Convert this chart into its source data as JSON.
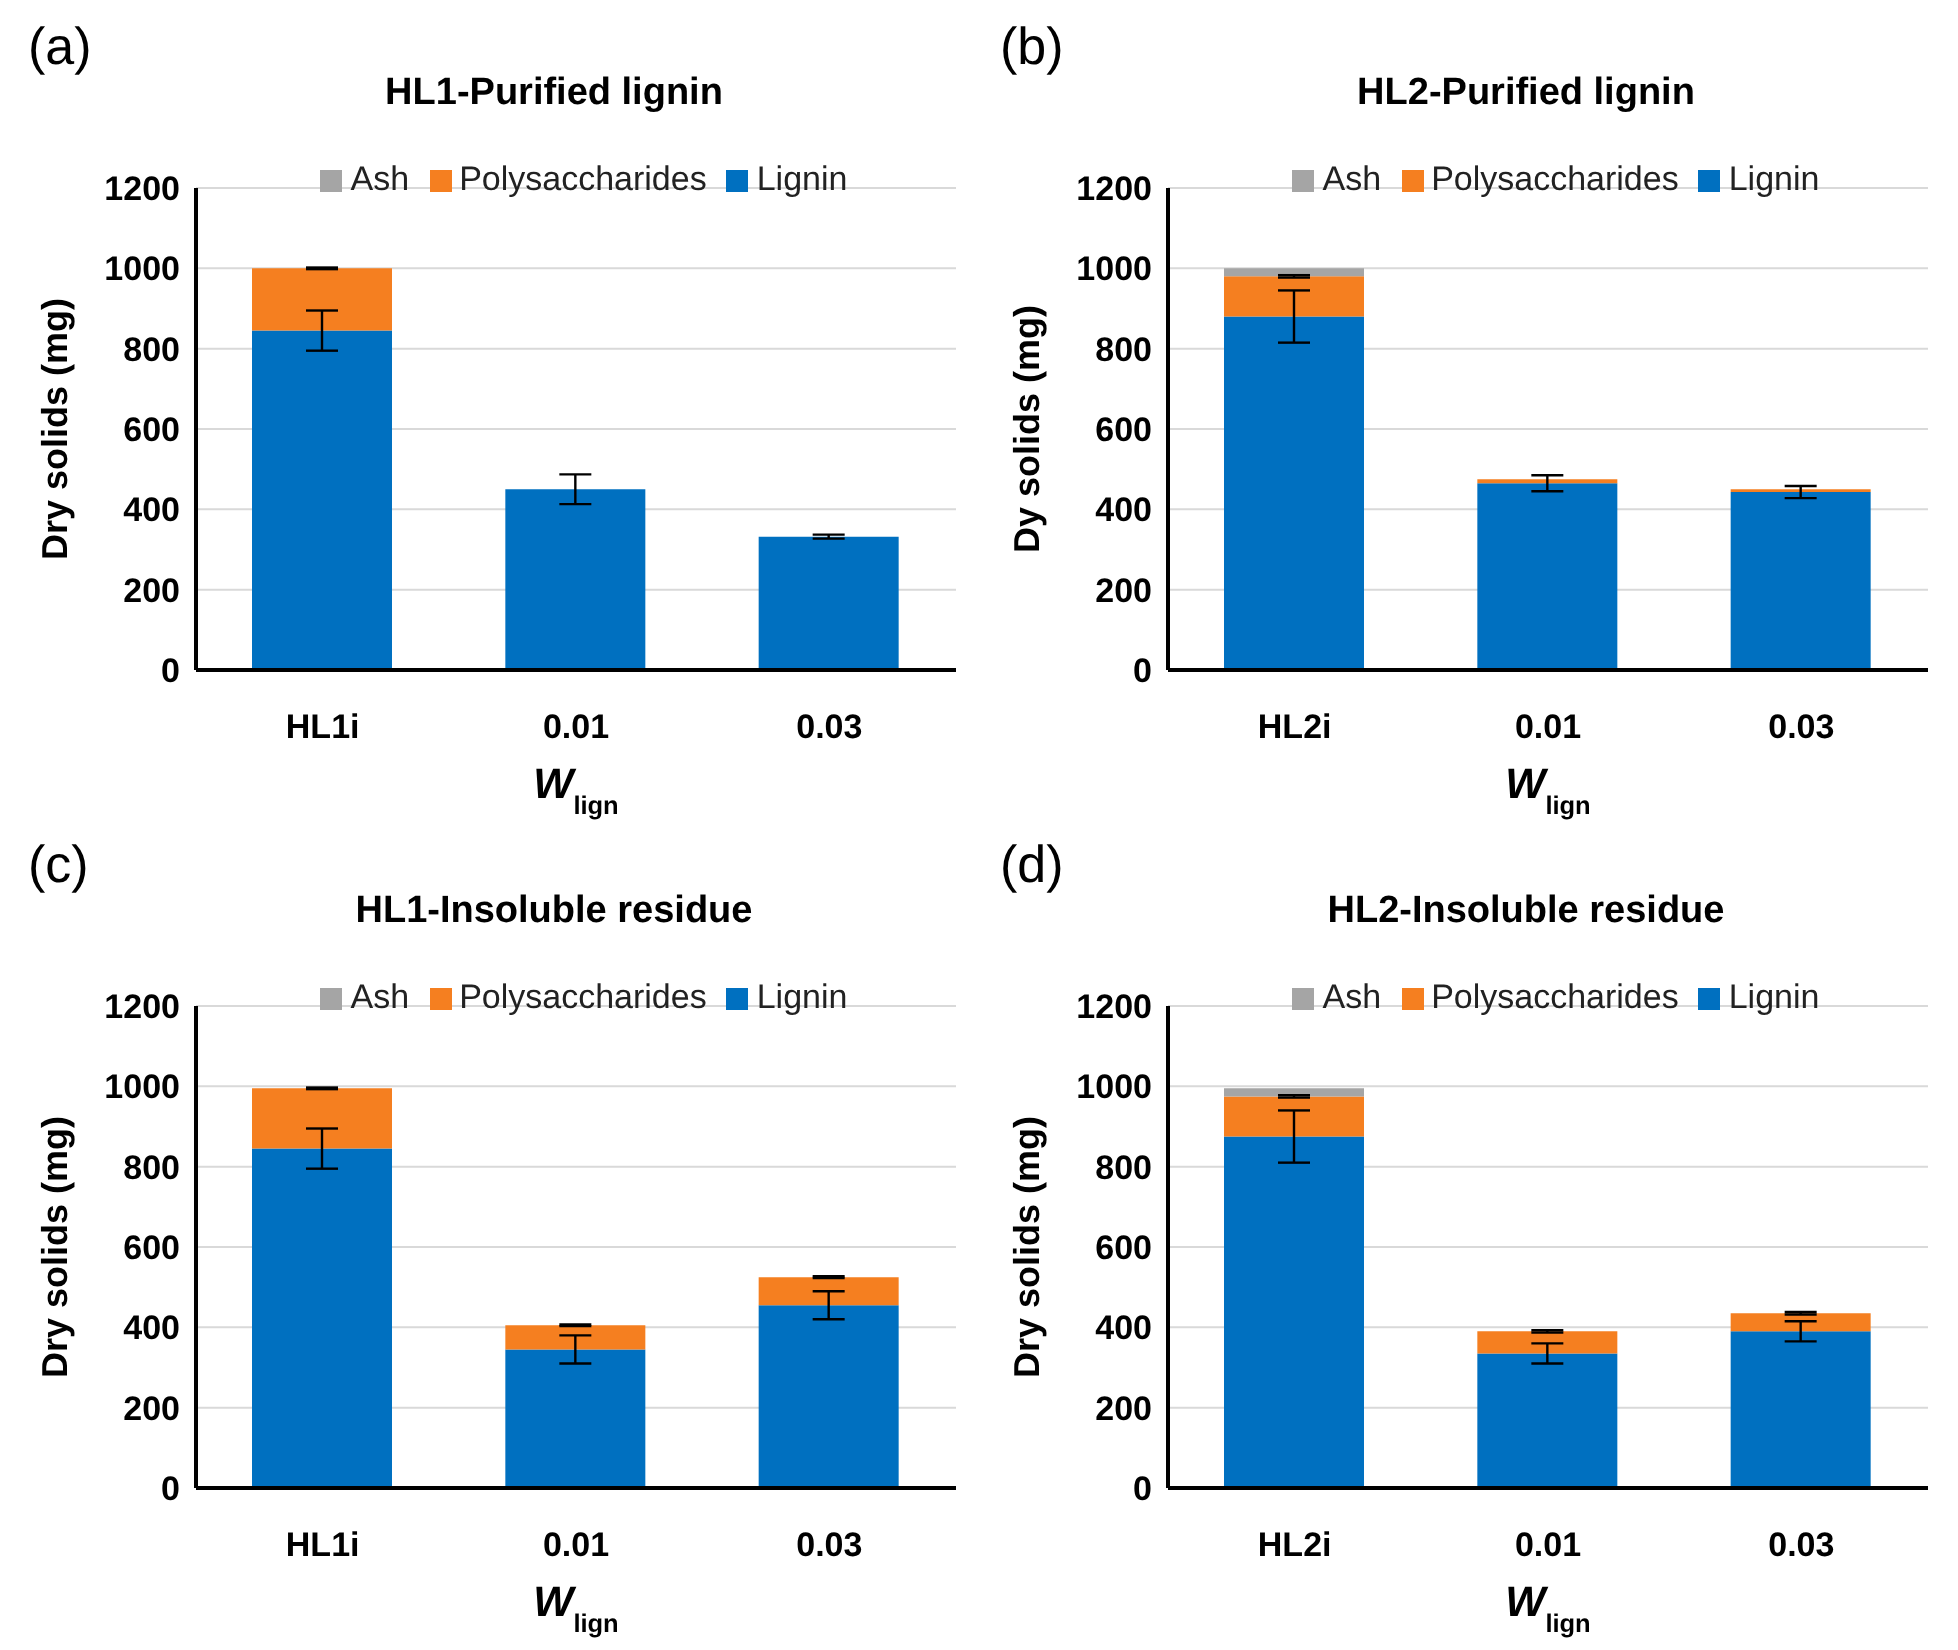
{
  "chart_data": [
    {
      "type": "bar",
      "title": "HL1-Purified lignin",
      "annotations": [
        "(a)"
      ],
      "xlabel": "W$_{lign}$",
      "ylabel": "Dry solids (mg)",
      "categories": [
        "HL1i",
        "0.01",
        "0.03"
      ],
      "stacked": true,
      "ylim": [
        0,
        1200
      ],
      "yticks": [
        0,
        200,
        400,
        600,
        800,
        1000,
        1200
      ],
      "grid": "y",
      "legend": "top",
      "series": [
        {
          "name": "Lignin",
          "color": "#0070c0",
          "values": [
            845,
            450,
            332
          ],
          "errors": [
            50,
            37,
            5
          ]
        },
        {
          "name": "Polysaccharides",
          "color": "#f57f20",
          "values": [
            155,
            0,
            0
          ],
          "errors": [
            2,
            null,
            null
          ]
        },
        {
          "name": "Ash",
          "color": "#a5a5a5",
          "values": [
            0,
            0,
            0
          ]
        }
      ]
    },
    {
      "type": "bar",
      "title": "HL2-Purified lignin",
      "annotations": [
        "(b)"
      ],
      "xlabel": "W$_{lign}$",
      "ylabel": "Dy solids (mg)",
      "categories": [
        "HL2i",
        "0.01",
        "0.03"
      ],
      "stacked": true,
      "ylim": [
        0,
        1200
      ],
      "yticks": [
        0,
        200,
        400,
        600,
        800,
        1000,
        1200
      ],
      "grid": "y",
      "legend": "top",
      "series": [
        {
          "name": "Lignin",
          "color": "#0070c0",
          "values": [
            880,
            465,
            443
          ],
          "errors": [
            65,
            20,
            15
          ]
        },
        {
          "name": "Polysaccharides",
          "color": "#f57f20",
          "values": [
            100,
            10,
            7
          ],
          "errors": [
            3,
            null,
            null
          ]
        },
        {
          "name": "Ash",
          "color": "#a5a5a5",
          "values": [
            20,
            0,
            0
          ]
        }
      ]
    },
    {
      "type": "bar",
      "title": "HL1-Insoluble residue",
      "annotations": [
        "(c)"
      ],
      "xlabel": "W$_{lign}$",
      "ylabel": "Dry solids (mg)",
      "categories": [
        "HL1i",
        "0.01",
        "0.03"
      ],
      "stacked": true,
      "ylim": [
        0,
        1200
      ],
      "yticks": [
        0,
        200,
        400,
        600,
        800,
        1000,
        1200
      ],
      "grid": "y",
      "legend": "top",
      "series": [
        {
          "name": "Lignin",
          "color": "#0070c0",
          "values": [
            845,
            345,
            455
          ],
          "errors": [
            50,
            35,
            35
          ]
        },
        {
          "name": "Polysaccharides",
          "color": "#f57f20",
          "values": [
            150,
            60,
            70
          ],
          "errors": [
            2,
            2,
            2
          ]
        },
        {
          "name": "Ash",
          "color": "#a5a5a5",
          "values": [
            0,
            0,
            0
          ]
        }
      ]
    },
    {
      "type": "bar",
      "title": "HL2-Insoluble residue",
      "annotations": [
        "(d)"
      ],
      "xlabel": "W$_{lign}$",
      "ylabel": "Dry solids (mg)",
      "categories": [
        "HL2i",
        "0.01",
        "0.03"
      ],
      "stacked": true,
      "ylim": [
        0,
        1200
      ],
      "yticks": [
        0,
        200,
        400,
        600,
        800,
        1000,
        1200
      ],
      "grid": "y",
      "legend": "top",
      "series": [
        {
          "name": "Lignin",
          "color": "#0070c0",
          "values": [
            875,
            335,
            390
          ],
          "errors": [
            65,
            25,
            25
          ]
        },
        {
          "name": "Polysaccharides",
          "color": "#f57f20",
          "values": [
            100,
            55,
            45
          ],
          "errors": [
            3,
            3,
            3
          ]
        },
        {
          "name": "Ash",
          "color": "#a5a5a5",
          "values": [
            20,
            0,
            0
          ]
        }
      ]
    }
  ]
}
